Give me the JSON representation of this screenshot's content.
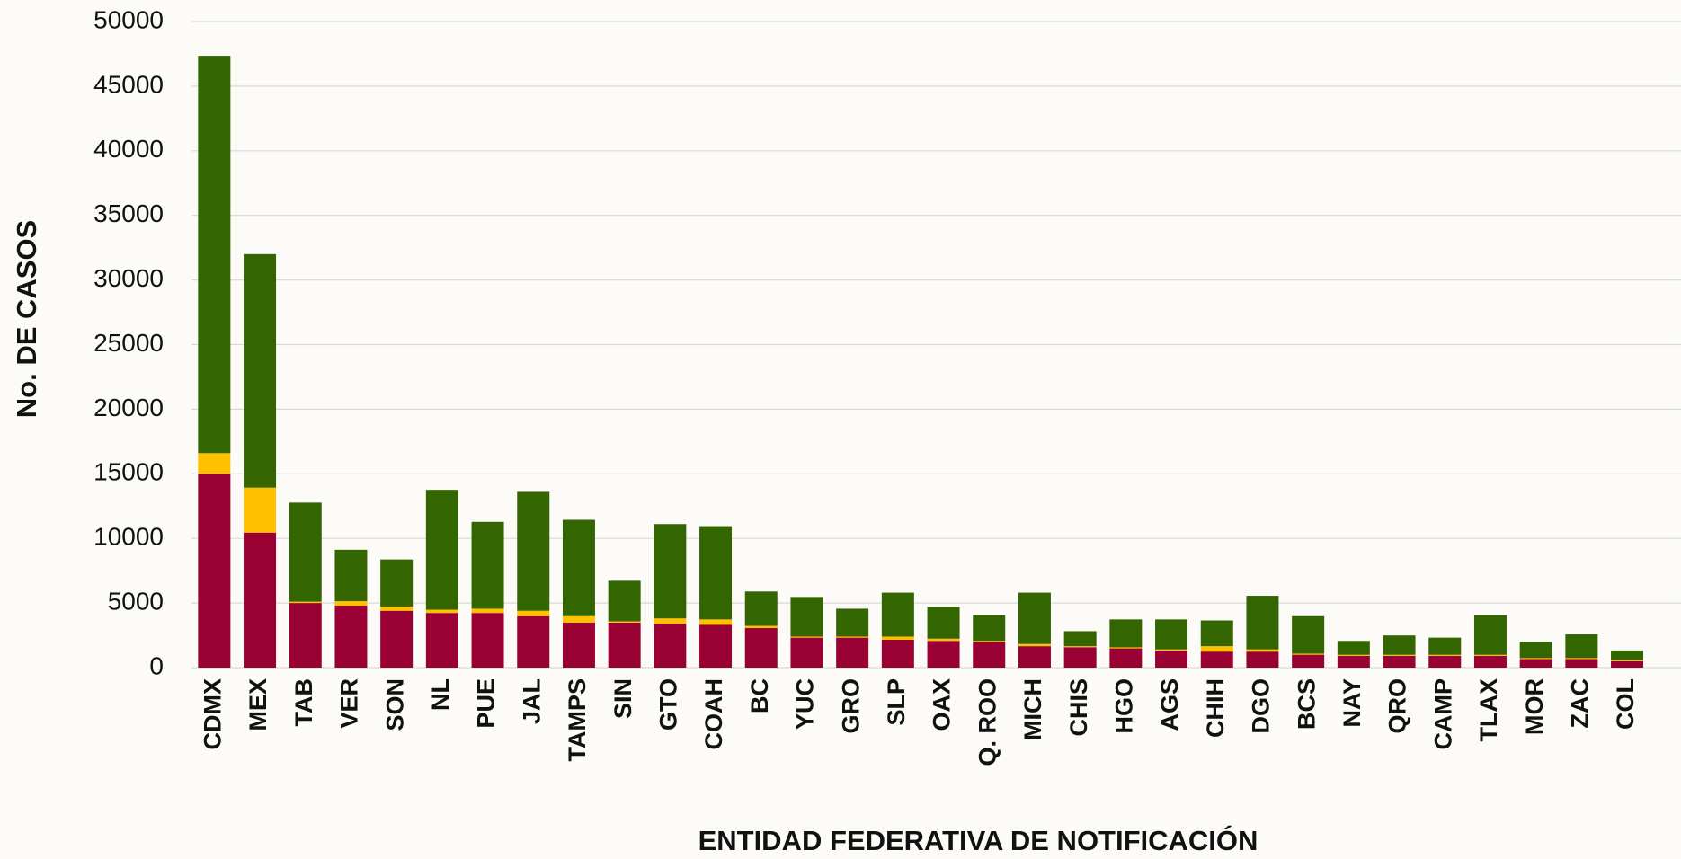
{
  "chart_data": {
    "type": "stacked_bar",
    "y_label": "No.  DE CASOS",
    "x_label": "ENTIDAD FEDERATIVA DE NOTIFICACIÓN",
    "categories": [
      "CDMX",
      "MEX",
      "TAB",
      "VER",
      "SON",
      "NL",
      "PUE",
      "JAL",
      "TAMPS",
      "SIN",
      "GTO",
      "COAH",
      "BC",
      "YUC",
      "GRO",
      "SLP",
      "OAX",
      "Q. ROO",
      "MICH",
      "CHIS",
      "HGO",
      "AGS",
      "CHIH",
      "DGO",
      "BCS",
      "NAY",
      "QRO",
      "CAMP",
      "TLAX",
      "MOR",
      "ZAC",
      "COL"
    ],
    "series": [
      {
        "color": "#990033",
        "values": [
          15000,
          10450,
          5000,
          4800,
          4400,
          4230,
          4230,
          3980,
          3480,
          3480,
          3400,
          3320,
          3070,
          2320,
          2320,
          2160,
          2070,
          1990,
          1660,
          1580,
          1490,
          1330,
          1240,
          1240,
          1000,
          910,
          910,
          910,
          910,
          660,
          660,
          500
        ]
      },
      {
        "color": "#ffc000",
        "values": [
          1600,
          3480,
          100,
          340,
          330,
          250,
          330,
          420,
          500,
          100,
          410,
          410,
          160,
          80,
          80,
          240,
          170,
          80,
          170,
          80,
          80,
          80,
          420,
          170,
          80,
          80,
          80,
          80,
          80,
          80,
          80,
          80
        ]
      },
      {
        "color": "#336600",
        "values": [
          30750,
          18070,
          7670,
          3980,
          3640,
          9280,
          6720,
          9200,
          7460,
          3140,
          7300,
          7220,
          2660,
          3070,
          2160,
          3400,
          2490,
          1990,
          3970,
          1160,
          2160,
          2320,
          1990,
          4150,
          2900,
          1080,
          1500,
          1330,
          3070,
          1250,
          1830,
          750
        ]
      }
    ],
    "ylim": [
      0,
      50000
    ],
    "yticks": [
      0,
      5000,
      10000,
      15000,
      20000,
      25000,
      30000,
      35000,
      40000,
      45000,
      50000
    ],
    "grid": true
  }
}
